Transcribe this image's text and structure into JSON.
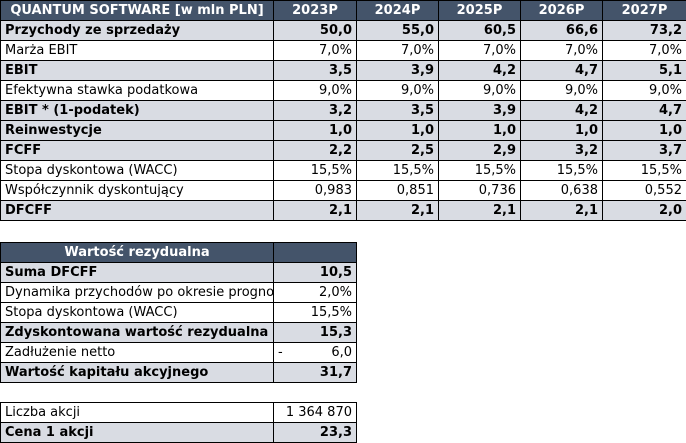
{
  "main_table": {
    "title": "QUANTUM SOFTWARE [w mln PLN]",
    "years": [
      "2023P",
      "2024P",
      "2025P",
      "2026P",
      "2027P"
    ],
    "rows": [
      {
        "label": "Przychody ze sprzedaży",
        "values": [
          "50,0",
          "55,0",
          "60,5",
          "66,6",
          "73,2"
        ],
        "bold": true
      },
      {
        "label": "Marża EBIT",
        "values": [
          "7,0%",
          "7,0%",
          "7,0%",
          "7,0%",
          "7,0%"
        ],
        "bold": false
      },
      {
        "label": "EBIT",
        "values": [
          "3,5",
          "3,9",
          "4,2",
          "4,7",
          "5,1"
        ],
        "bold": true
      },
      {
        "label": "Efektywna stawka podatkowa",
        "values": [
          "9,0%",
          "9,0%",
          "9,0%",
          "9,0%",
          "9,0%"
        ],
        "bold": false
      },
      {
        "label": "EBIT * (1-podatek)",
        "values": [
          "3,2",
          "3,5",
          "3,9",
          "4,2",
          "4,7"
        ],
        "bold": true
      },
      {
        "label": "Reinwestycje",
        "values": [
          "1,0",
          "1,0",
          "1,0",
          "1,0",
          "1,0"
        ],
        "bold": true
      },
      {
        "label": "FCFF",
        "values": [
          "2,2",
          "2,5",
          "2,9",
          "3,2",
          "3,7"
        ],
        "bold": true
      },
      {
        "label": "Stopa dyskontowa (WACC)",
        "values": [
          "15,5%",
          "15,5%",
          "15,5%",
          "15,5%",
          "15,5%"
        ],
        "bold": false
      },
      {
        "label": "Współczynnik dyskontujący",
        "values": [
          "0,983",
          "0,851",
          "0,736",
          "0,638",
          "0,552"
        ],
        "bold": false
      },
      {
        "label": "DFCFF",
        "values": [
          "2,1",
          "2,1",
          "2,1",
          "2,1",
          "2,0"
        ],
        "bold": true
      }
    ]
  },
  "residual_table": {
    "title": "Wartość rezydualna",
    "rows": [
      {
        "label": "Suma DFCFF",
        "value": "10,5",
        "bold": true
      },
      {
        "label": "Dynamika przychodów po okresie prognozy",
        "value": "2,0%",
        "bold": false
      },
      {
        "label": "Stopa dyskontowa (WACC)",
        "value": "15,5%",
        "bold": false
      },
      {
        "label": "Zdyskontowana wartość rezydualna",
        "value": "15,3",
        "bold": true
      },
      {
        "label": "Zadłużenie netto",
        "value": "6,0",
        "prefix": "-",
        "bold": false
      },
      {
        "label": "Wartość kapitału akcyjnego",
        "value": "31,7",
        "bold": true
      }
    ]
  },
  "shares_table": {
    "rows": [
      {
        "label": "Liczba akcji",
        "value": "1 364 870",
        "bold": false
      },
      {
        "label": "Cena 1 akcji",
        "value": "23,3",
        "bold": true
      }
    ]
  }
}
